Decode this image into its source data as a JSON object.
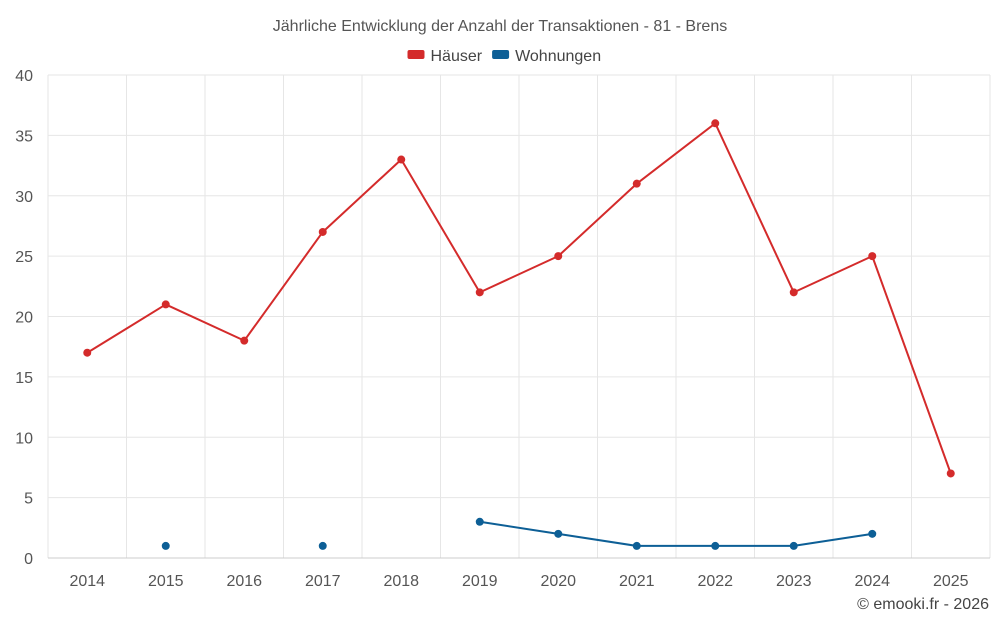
{
  "chart_data": {
    "type": "line",
    "title": "Jährliche Entwicklung der Anzahl der Transaktionen - 81 - Brens",
    "categories": [
      "2014",
      "2015",
      "2016",
      "2017",
      "2018",
      "2019",
      "2020",
      "2021",
      "2022",
      "2023",
      "2024",
      "2025"
    ],
    "ylim": [
      0,
      40
    ],
    "yticks": [
      0,
      5,
      10,
      15,
      20,
      25,
      30,
      35,
      40
    ],
    "grid": true,
    "legend_position": "top-center",
    "xlabel": "",
    "ylabel": "",
    "series": [
      {
        "name": "Häuser",
        "color": "#d42b2b",
        "values": [
          17,
          21,
          18,
          27,
          33,
          22,
          25,
          31,
          36,
          22,
          25,
          7
        ]
      },
      {
        "name": "Wohnungen",
        "color": "#0d5f96",
        "values": [
          null,
          1,
          null,
          1,
          null,
          3,
          2,
          1,
          1,
          1,
          2,
          null
        ]
      }
    ]
  },
  "credit": "© emooki.fr - 2026"
}
